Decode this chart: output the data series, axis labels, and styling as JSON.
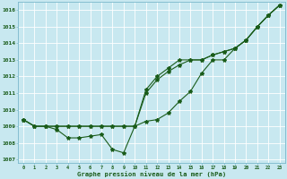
{
  "x": [
    0,
    1,
    2,
    3,
    4,
    5,
    6,
    7,
    8,
    9,
    10,
    11,
    12,
    13,
    14,
    15,
    16,
    17,
    18,
    19,
    20,
    21,
    22,
    23
  ],
  "series1": [
    1009.4,
    1009.0,
    1009.0,
    1008.8,
    1008.3,
    1008.3,
    1008.4,
    1008.5,
    1007.6,
    1007.4,
    1009.0,
    1009.3,
    1009.4,
    1009.8,
    1010.5,
    1011.1,
    1012.2,
    1013.0,
    1013.0,
    1013.7,
    1014.2,
    1015.0,
    1015.7,
    1016.3
  ],
  "series2": [
    1009.4,
    1009.0,
    1009.0,
    1009.0,
    1009.0,
    1009.0,
    1009.0,
    1009.0,
    1009.0,
    1009.0,
    1009.0,
    1011.0,
    1011.8,
    1012.3,
    1012.7,
    1013.0,
    1013.0,
    1013.3,
    1013.5,
    1013.7,
    1014.2,
    1015.0,
    1015.7,
    1016.3
  ],
  "series3": [
    1009.4,
    1009.0,
    1009.0,
    1009.0,
    1009.0,
    1009.0,
    1009.0,
    1009.0,
    1009.0,
    1009.0,
    1009.0,
    1011.2,
    1012.0,
    1012.5,
    1013.0,
    1013.0,
    1013.0,
    1013.3,
    1013.5,
    1013.7,
    1014.2,
    1015.0,
    1015.7,
    1016.3
  ],
  "ylim_min": 1006.8,
  "ylim_max": 1016.5,
  "yticks": [
    1007,
    1008,
    1009,
    1010,
    1011,
    1012,
    1013,
    1014,
    1015,
    1016
  ],
  "bg_color": "#c8e8f0",
  "grid_color": "#ffffff",
  "line_color": "#1a5c1a",
  "xlabel": "Graphe pression niveau de la mer (hPa)",
  "tick_color": "#1a5c1a",
  "spine_color": "#7ab8cc"
}
